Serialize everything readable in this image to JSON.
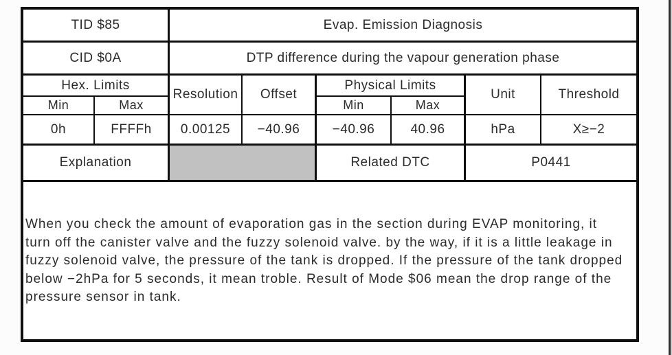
{
  "doc": {
    "tid": {
      "label": "TID $85",
      "title": "Evap. Emission Diagnosis"
    },
    "cid": {
      "label": "CID $0A",
      "title": "DTP difference during the vapour generation phase"
    },
    "headers": {
      "hex_limits": "Hex. Limits",
      "resolution": "Resolution",
      "offset": "Offset",
      "physical_limits": "Physical Limits",
      "unit": "Unit",
      "threshold": "Threshold",
      "hex_min": "Min",
      "hex_max": "Max",
      "physical_min": "Min",
      "physical_max": "Max"
    },
    "values": {
      "hex_min": "0h",
      "hex_max": "FFFFh",
      "resolution": "0.00125",
      "offset": "−40.96",
      "physical_min": "−40.96",
      "physical_max": "40.96",
      "unit": "hPa",
      "threshold": "X≥−2"
    },
    "explanation_label": "Explanation",
    "related_dtc_label": "Related DTC",
    "related_dtc_value": "P0441",
    "explanation_lines": [
      "When you check the amount of evaporation gas in the section during EVAP monitoring, it",
      "turn off the canister valve and the fuzzy solenoid valve. by the way, if it is a little leakage in",
      "fuzzy solenoid valve, the pressure of the tank is dropped. If the pressure of the tank dropped",
      "below −2hPa for 5 seconds, it mean troble. Result of Mode $06 mean the drop range of the",
      "pressure sensor in tank."
    ]
  },
  "colors": {
    "border": "#0f0f0f",
    "gray_cell": "#c1c1c1",
    "text": "#2b2b2b",
    "page_edge_line": "#2f2f2f"
  }
}
